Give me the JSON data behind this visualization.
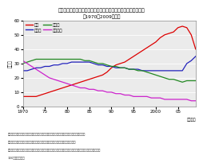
{
  "title_line1": "(Figure 1) National Health Insurance, ratio of households by occupation",
  "title_line1_ja": "（図表１）国民健康保険、総世帯数に占める職業別世帯数の割合",
  "title_line2_ja": "（1970～2009年度）",
  "ylabel_ja": "（％）",
  "xlabel_right_ja": "（年度）",
  "background_color": "#ffffff",
  "plot_background": "#ebebeb",
  "years": [
    1970,
    1971,
    1972,
    1973,
    1974,
    1975,
    1976,
    1977,
    1978,
    1979,
    1980,
    1981,
    1982,
    1983,
    1984,
    1985,
    1986,
    1987,
    1988,
    1989,
    1990,
    1991,
    1992,
    1993,
    1994,
    1995,
    1996,
    1997,
    1998,
    1999,
    2000,
    2001,
    2002,
    2003,
    2004,
    2005,
    2006,
    2007,
    2008,
    2009
  ],
  "mugyou": [
    7,
    7,
    7,
    7,
    8,
    9,
    10,
    11,
    12,
    13,
    14,
    15,
    16,
    17,
    18,
    19,
    20,
    21,
    22,
    24,
    27,
    29,
    30,
    31,
    33,
    35,
    37,
    39,
    41,
    43,
    45,
    48,
    50,
    51,
    52,
    55,
    56,
    55,
    50,
    40
  ],
  "koyousha": [
    25,
    25,
    26,
    27,
    27,
    28,
    28,
    29,
    29,
    30,
    30,
    31,
    31,
    31,
    31,
    31,
    30,
    29,
    29,
    28,
    28,
    27,
    27,
    27,
    26,
    26,
    26,
    25,
    25,
    25,
    25,
    25,
    25,
    25,
    25,
    25,
    25,
    30,
    32,
    35
  ],
  "jieigyo": [
    30,
    31,
    32,
    33,
    33,
    33,
    33,
    33,
    33,
    33,
    33,
    33,
    33,
    33,
    32,
    32,
    31,
    30,
    30,
    29,
    28,
    28,
    27,
    27,
    26,
    26,
    25,
    25,
    24,
    23,
    22,
    21,
    20,
    19,
    19,
    18,
    17,
    18,
    18,
    18
  ],
  "nourinsuisan": [
    32,
    30,
    28,
    26,
    24,
    22,
    20,
    19,
    18,
    17,
    16,
    15,
    14,
    13,
    13,
    12,
    12,
    11,
    11,
    10,
    10,
    9,
    9,
    8,
    8,
    7,
    7,
    7,
    7,
    6,
    6,
    6,
    5,
    5,
    5,
    5,
    5,
    5,
    4,
    4
  ],
  "mugyou_label": "無職",
  "koyousha_label": "被用者",
  "jieigyo_label": "自営業",
  "nourinsuisan_label": "農林水産",
  "colors": {
    "mugyou": "#dd0000",
    "koyousha": "#2222bb",
    "jieigyo": "#228822",
    "nourinsuisan": "#cc22cc"
  },
  "ylim": [
    0,
    60
  ],
  "yticks": [
    0,
    10,
    20,
    30,
    40,
    50,
    60
  ],
  "xticks": [
    1970,
    1975,
    1980,
    1985,
    1990,
    1995,
    2000,
    2005
  ],
  "xtick_labels": [
    "1970",
    "75",
    "80",
    "85",
    "90",
    "95",
    "2000",
    "05"
  ],
  "note1": "（資料）厚生労働省保険局「国民健康保険実態調査報告」各年度版より日本総合研究所作成",
  "note2": "（注１）本表は、世帯主が被用者保険の被保険者である福祉世帯を除いて集計。",
  "note3": "（注２）４つの分類のいずれにも属さない「その他」の記置を省略。そのため、各年度の４つの分類の合計は",
  "note4": "100にならない。"
}
